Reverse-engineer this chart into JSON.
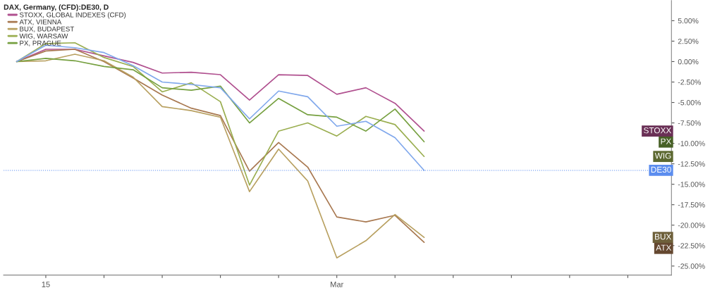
{
  "chart_data": {
    "type": "line",
    "title": "DAX, Germany, (CFD):DE30, D",
    "categories": [
      null,
      "15",
      null,
      null,
      null,
      null,
      null,
      null,
      null,
      null,
      null,
      "Mar",
      null,
      null,
      null,
      null,
      null,
      null,
      null,
      null,
      null,
      null,
      null
    ],
    "series": [
      {
        "name": "STOXX, GLOBAL INDEXES (CFD)",
        "color": "#b0508f",
        "values": [
          0,
          1.5,
          1.5,
          0.7,
          -0.1,
          -1.4,
          -1.3,
          -1.6,
          -4.7,
          -1.6,
          -1.7,
          -4.0,
          -3.2,
          -5.1,
          -8.5,
          null,
          null,
          null,
          null,
          null,
          null,
          null,
          null
        ]
      },
      {
        "name": "ATX, VIENNA",
        "color": "#a87850",
        "values": [
          0,
          1.3,
          1.5,
          0,
          -2.0,
          -4.1,
          -5.7,
          -6.6,
          -13.4,
          -9.9,
          -12.9,
          -19.0,
          -19.6,
          -18.8,
          -22.1,
          null,
          null,
          null,
          null,
          null,
          null,
          null,
          null
        ]
      },
      {
        "name": "BUX, BUDAPEST",
        "color": "#b8a060",
        "values": [
          0,
          0.1,
          0.9,
          0.1,
          -1.9,
          -5.5,
          -6.0,
          -6.8,
          -15.9,
          -10.7,
          -14.6,
          -24.0,
          -21.9,
          -18.7,
          -21.5,
          null,
          null,
          null,
          null,
          null,
          null,
          null,
          null
        ]
      },
      {
        "name": "WIG, WARSAW",
        "color": "#9aae50",
        "values": [
          0,
          2.2,
          2.3,
          0.5,
          -0.6,
          -3.7,
          -2.6,
          -4.9,
          -15.1,
          -8.5,
          -7.5,
          -9.1,
          -6.7,
          -7.7,
          -11.6,
          null,
          null,
          null,
          null,
          null,
          null,
          null,
          null
        ]
      },
      {
        "name": "PX, PRAGUE",
        "color": "#76a040",
        "values": [
          0,
          0.4,
          0.1,
          -0.6,
          -1.0,
          -3.2,
          -3.5,
          -3.0,
          -7.5,
          -4.5,
          -6.5,
          -6.8,
          -8.5,
          -5.8,
          -9.8,
          null,
          null,
          null,
          null,
          null,
          null,
          null,
          null
        ]
      },
      {
        "color": "#80a8ec",
        "values": [
          0,
          2.0,
          1.7,
          1.1,
          -0.5,
          -2.5,
          -2.8,
          -3.2,
          -7.0,
          -3.6,
          -4.3,
          -7.9,
          -7.3,
          -9.3,
          -13.3,
          null,
          null,
          null,
          null,
          null,
          null,
          null,
          null
        ]
      }
    ],
    "annotations": [
      "STOXX",
      "PX",
      "WIG",
      "BUX",
      "ATX"
    ],
    "ref_lines": [
      {
        "axis": "y",
        "value": -13.3,
        "label": "DE30",
        "color": "#5b8def",
        "line_style": "dotted"
      }
    ],
    "ylim": [
      -26.1,
      7.46
    ],
    "yticks": [
      {
        "value": 5,
        "label": "5.00%"
      },
      {
        "value": 2.5,
        "label": "2.50%"
      },
      {
        "value": 0,
        "label": "0.00%"
      },
      {
        "value": -2.5,
        "label": "-2.50%"
      },
      {
        "value": -5,
        "label": "-5.00%"
      },
      {
        "value": -7.5,
        "label": "-7.50%"
      },
      {
        "value": -10,
        "label": "-10.00%"
      },
      {
        "value": -12.5,
        "label": "-12.50%"
      },
      {
        "value": -15,
        "label": "-15.00%"
      },
      {
        "value": -17.5,
        "label": "-17.50%"
      },
      {
        "value": -20,
        "label": "-20.00%"
      },
      {
        "value": -22.5,
        "label": "-22.50%"
      },
      {
        "value": -25,
        "label": "-25.00%"
      }
    ],
    "grid": false,
    "legend": "top left",
    "line_style": "solid",
    "marker": "none"
  }
}
